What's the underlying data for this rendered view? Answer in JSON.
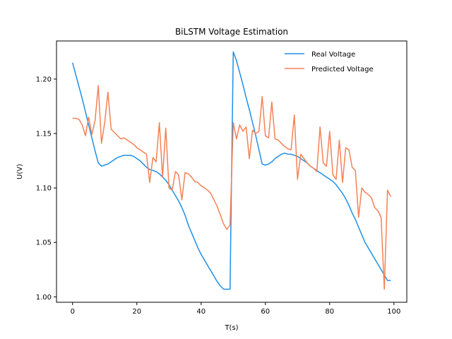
{
  "chart_data": {
    "type": "line",
    "title": "BiLSTM Voltage Estimation",
    "xlabel": "T(s)",
    "ylabel": "U(V)",
    "xlim": [
      -5,
      104
    ],
    "ylim": [
      0.995,
      1.235
    ],
    "xticks": [
      0,
      20,
      40,
      60,
      80,
      100
    ],
    "yticks": [
      1.0,
      1.05,
      1.1,
      1.15,
      1.2
    ],
    "ytick_labels": [
      "1.00",
      "1.05",
      "1.10",
      "1.15",
      "1.20"
    ],
    "grid": false,
    "legend_position": "top-right",
    "series": [
      {
        "name": "Real Voltage",
        "color": "#1f8fe8",
        "x": [
          0,
          1,
          2,
          3,
          4,
          5,
          6,
          7,
          8,
          9,
          10,
          11,
          12,
          13,
          14,
          15,
          16,
          17,
          18,
          19,
          20,
          21,
          22,
          23,
          24,
          25,
          26,
          27,
          28,
          29,
          30,
          31,
          32,
          33,
          34,
          35,
          36,
          37,
          38,
          39,
          40,
          41,
          42,
          43,
          44,
          45,
          46,
          47,
          48,
          49,
          50,
          51,
          52,
          53,
          54,
          55,
          56,
          57,
          58,
          59,
          60,
          61,
          62,
          63,
          64,
          65,
          66,
          67,
          68,
          69,
          70,
          71,
          72,
          73,
          74,
          75,
          76,
          77,
          78,
          79,
          80,
          81,
          82,
          83,
          84,
          85,
          86,
          87,
          88,
          89,
          90,
          91,
          92,
          93,
          94,
          95,
          96,
          97,
          98,
          99
        ],
        "values": [
          1.215,
          1.204,
          1.193,
          1.182,
          1.17,
          1.158,
          1.146,
          1.134,
          1.123,
          1.12,
          1.121,
          1.122,
          1.124,
          1.126,
          1.128,
          1.129,
          1.13,
          1.13,
          1.13,
          1.129,
          1.127,
          1.125,
          1.122,
          1.119,
          1.117,
          1.116,
          1.115,
          1.113,
          1.11,
          1.107,
          1.103,
          1.098,
          1.093,
          1.088,
          1.082,
          1.075,
          1.066,
          1.059,
          1.052,
          1.045,
          1.039,
          1.034,
          1.029,
          1.024,
          1.019,
          1.014,
          1.01,
          1.007,
          1.007,
          1.007,
          1.225,
          1.217,
          1.206,
          1.195,
          1.183,
          1.172,
          1.16,
          1.148,
          1.135,
          1.122,
          1.121,
          1.122,
          1.124,
          1.127,
          1.129,
          1.131,
          1.132,
          1.131,
          1.131,
          1.13,
          1.129,
          1.127,
          1.125,
          1.123,
          1.12,
          1.118,
          1.116,
          1.114,
          1.112,
          1.11,
          1.108,
          1.106,
          1.103,
          1.099,
          1.095,
          1.09,
          1.084,
          1.077,
          1.071,
          1.064,
          1.057,
          1.05,
          1.045,
          1.04,
          1.035,
          1.03,
          1.025,
          1.02,
          1.015,
          1.015
        ]
      },
      {
        "name": "Predicted Voltage",
        "color": "#f58155",
        "x": [
          0,
          1,
          2,
          3,
          4,
          5,
          6,
          7,
          8,
          9,
          10,
          11,
          12,
          13,
          14,
          15,
          16,
          17,
          18,
          19,
          20,
          21,
          22,
          23,
          24,
          25,
          26,
          27,
          28,
          29,
          30,
          31,
          32,
          33,
          34,
          35,
          36,
          37,
          38,
          39,
          40,
          41,
          42,
          43,
          44,
          45,
          46,
          47,
          48,
          49,
          50,
          51,
          52,
          53,
          54,
          55,
          56,
          57,
          58,
          59,
          60,
          61,
          62,
          63,
          64,
          65,
          66,
          67,
          68,
          69,
          70,
          71,
          72,
          73,
          74,
          75,
          76,
          77,
          78,
          79,
          80,
          81,
          82,
          83,
          84,
          85,
          86,
          87,
          88,
          89,
          90,
          91,
          92,
          93,
          94,
          95,
          96,
          97,
          98,
          99
        ],
        "values": [
          1.164,
          1.164,
          1.163,
          1.158,
          1.148,
          1.165,
          1.149,
          1.162,
          1.194,
          1.141,
          1.16,
          1.188,
          1.154,
          1.151,
          1.148,
          1.145,
          1.146,
          1.144,
          1.142,
          1.14,
          1.137,
          1.135,
          1.133,
          1.131,
          1.105,
          1.128,
          1.124,
          1.16,
          1.11,
          1.155,
          1.1,
          1.098,
          1.115,
          1.112,
          1.089,
          1.114,
          1.113,
          1.11,
          1.106,
          1.105,
          1.102,
          1.1,
          1.098,
          1.095,
          1.089,
          1.083,
          1.075,
          1.067,
          1.062,
          1.066,
          1.16,
          1.145,
          1.158,
          1.152,
          1.156,
          1.127,
          1.153,
          1.15,
          1.152,
          1.184,
          1.148,
          1.146,
          1.179,
          1.145,
          1.144,
          1.141,
          1.138,
          1.136,
          1.135,
          1.167,
          1.108,
          1.131,
          1.127,
          1.123,
          1.12,
          1.118,
          1.115,
          1.156,
          1.123,
          1.12,
          1.152,
          1.112,
          1.108,
          1.144,
          1.105,
          1.137,
          1.135,
          1.119,
          1.116,
          1.073,
          1.1,
          1.096,
          1.094,
          1.091,
          1.082,
          1.079,
          1.073,
          1.007,
          1.098,
          1.092
        ]
      }
    ]
  }
}
